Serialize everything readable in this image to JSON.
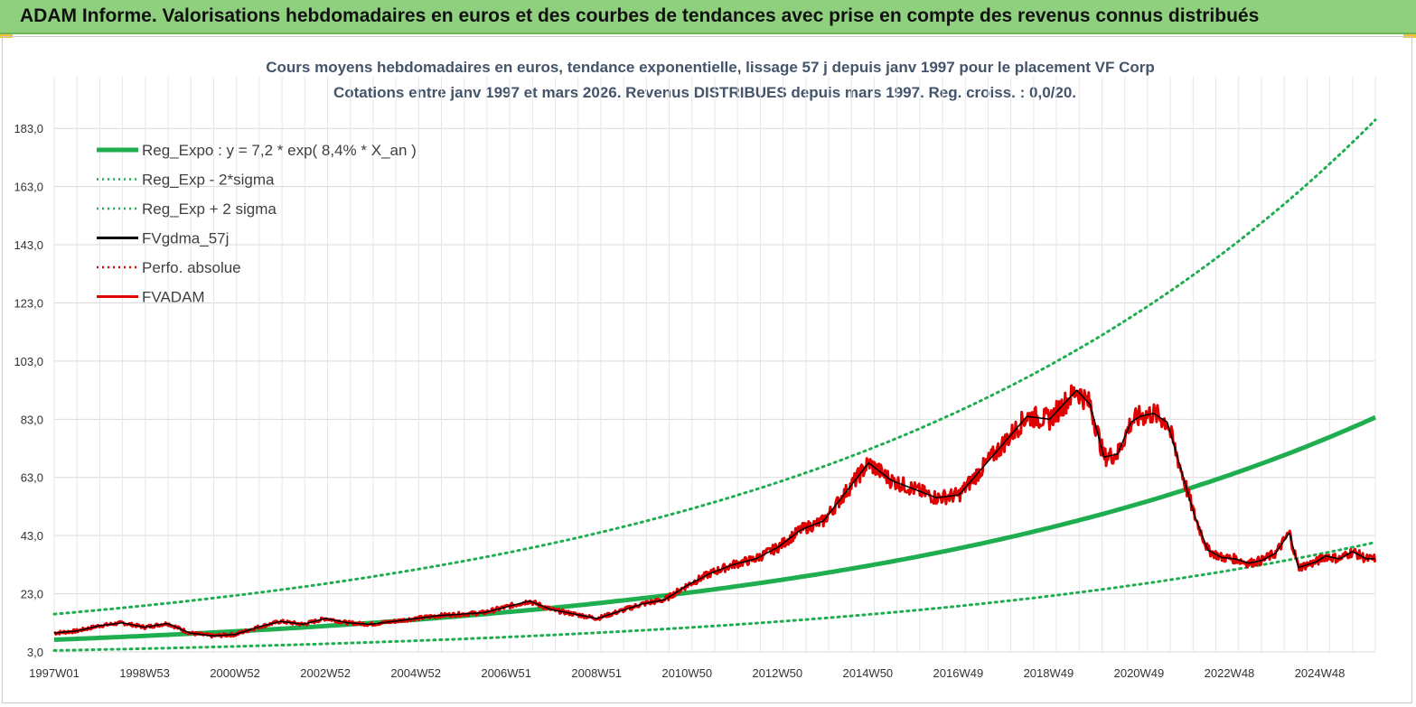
{
  "header": {
    "title": "ADAM Informe. Valorisations hebdomadaires en euros et des courbes de tendances avec prise en compte des revenus connus distribués"
  },
  "chart_data": {
    "type": "line",
    "title": "Cours moyens hebdomadaires en euros, tendance exponentielle, lissage 57 j depuis janv 1997 pour le placement VF Corp",
    "subtitle": "Cotations entre janv 1997 et mars 2026. Revenus DISTRIBUES depuis mars 1997. Reg. croiss. : 0,0/20.",
    "x_tick_labels": [
      "1997W01",
      "1998W53",
      "2000W52",
      "2002W52",
      "2004W52",
      "2006W51",
      "2008W51",
      "2010W50",
      "2012W50",
      "2014W50",
      "2016W49",
      "2018W49",
      "2020W49",
      "2022W48",
      "2024W48"
    ],
    "y_tick_labels": [
      "3,0",
      "23,0",
      "43,0",
      "63,0",
      "83,0",
      "103,0",
      "123,0",
      "143,0",
      "163,0",
      "183,0"
    ],
    "ylim": [
      3,
      193
    ],
    "xlim": [
      1997.0,
      2026.2
    ],
    "legend_position": "top-left",
    "series": [
      {
        "name": "Reg_Expo : y = 7,2 * exp( 8,4% *  X_an )",
        "color": "#1fae4f",
        "style": "solid-thick",
        "formula": {
          "a": 7.2,
          "rate": 0.084
        }
      },
      {
        "name": "Reg_Exp - 2*sigma",
        "color": "#1fae4f",
        "style": "dotted",
        "formula": {
          "a": 3.5,
          "rate": 0.084
        }
      },
      {
        "name": "Reg_Exp + 2 sigma",
        "color": "#1fae4f",
        "style": "dotted",
        "formula": {
          "a": 16.0,
          "rate": 0.084
        }
      },
      {
        "name": "FVgdma_57j",
        "color": "#000000",
        "style": "solid",
        "key": "smooth"
      },
      {
        "name": "Perfo. absolue",
        "color": "#e00000",
        "style": "dotted",
        "key": "none"
      },
      {
        "name": "FVADAM",
        "color": "#e00000",
        "style": "solid",
        "key": "price"
      }
    ],
    "price_points": {
      "x": [
        1997.0,
        1997.5,
        1998.0,
        1998.5,
        1999.0,
        1999.5,
        2000.0,
        2000.5,
        2001.0,
        2001.5,
        2002.0,
        2002.5,
        2003.0,
        2003.5,
        2004.0,
        2004.5,
        2005.0,
        2005.5,
        2006.0,
        2006.5,
        2007.0,
        2007.5,
        2008.0,
        2008.5,
        2009.0,
        2009.5,
        2010.0,
        2010.5,
        2011.0,
        2011.5,
        2012.0,
        2012.5,
        2013.0,
        2013.5,
        2014.0,
        2014.5,
        2015.0,
        2015.5,
        2016.0,
        2016.5,
        2017.0,
        2017.5,
        2018.0,
        2018.5,
        2019.0,
        2019.3,
        2019.6,
        2019.9,
        2020.2,
        2020.5,
        2020.8,
        2021.0,
        2021.3,
        2021.6,
        2021.9,
        2022.2,
        2022.5,
        2022.8,
        2023.1,
        2023.4,
        2023.7,
        2024.0,
        2024.3,
        2024.5,
        2024.7,
        2024.9,
        2025.1,
        2025.4,
        2025.7,
        2026.0,
        2026.2
      ],
      "y": [
        9.5,
        10.2,
        12.0,
        13.0,
        11.5,
        12.8,
        9.5,
        8.5,
        9.0,
        11.5,
        13.5,
        12.5,
        14.5,
        13.0,
        12.5,
        13.5,
        14.5,
        15.5,
        16.0,
        16.5,
        18.5,
        20.5,
        17.5,
        16.0,
        14.5,
        17.0,
        19.5,
        21.0,
        26.0,
        30.0,
        33.0,
        35.0,
        39.0,
        45.0,
        48.0,
        58.0,
        68.0,
        62.0,
        59.0,
        56.0,
        57.0,
        66.0,
        75.0,
        84.0,
        83.0,
        88.0,
        93.0,
        88.0,
        70.0,
        71.0,
        82.0,
        84.0,
        85.0,
        82.0,
        66.0,
        50.0,
        38.0,
        35.5,
        35.0,
        33.5,
        34.5,
        37.0,
        44.0,
        32.0,
        33.0,
        34.0,
        36.0,
        35.0,
        37.5,
        35.0,
        35.0
      ]
    }
  }
}
